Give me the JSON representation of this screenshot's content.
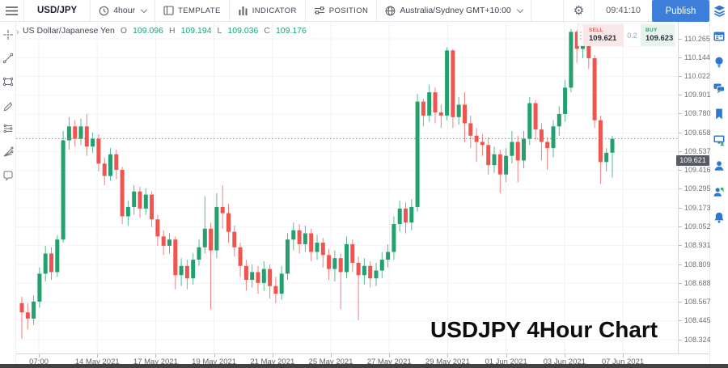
{
  "toolbar": {
    "symbol": "USD/JPY",
    "timeframe": "4hour",
    "template_label": "TEMPLATE",
    "indicator_label": "INDICATOR",
    "position_label": "POSITION",
    "timezone": "Australia/Sydney GMT+10:00",
    "clock_time": "09:41:10",
    "publish_label": "Publish"
  },
  "legend": {
    "instrument": "US Dollar/Japanese Yen",
    "o_label": "O",
    "o_value": "109.096",
    "h_label": "H",
    "h_value": "109.194",
    "l_label": "L",
    "l_value": "109.036",
    "c_label": "C",
    "c_value": "109.176"
  },
  "trade_widget": {
    "sell_label": "SELL",
    "sell_price": "109.621",
    "spread": "0.2",
    "buy_label": "BUY",
    "buy_price": "109.623"
  },
  "watermark": "USDJPY 4Hour Chart",
  "current_price": "109.621",
  "colors": {
    "candle_up": "#23a06d",
    "candle_down": "#f0544f",
    "publish_blue": "#3d7edb",
    "sidebar_icon_blue": "#2e77d0",
    "legend_value_green": "#1fa37c",
    "sell_bg": "#f9e8e8",
    "buy_bg": "#e8f3ed",
    "badge_bg": "#565b64"
  },
  "left_toolbar_tools": [
    "crosshair",
    "trend-line",
    "rectangle",
    "brush",
    "fib-retracement",
    "pitchfork",
    "comment"
  ],
  "right_sidebar_items": [
    "layers",
    "calendar",
    "idea",
    "chat",
    "bookmark",
    "screen-share",
    "profile",
    "community",
    "notifications"
  ],
  "chart_data": {
    "type": "candlestick",
    "symbol": "USDJPY",
    "timeframe": "4 hour",
    "title": "USDJPY 4Hour Chart",
    "current_price": 109.621,
    "y_range": [
      108.324,
      110.265
    ],
    "grid": true,
    "price_ticks": [
      "110.265",
      "110.144",
      "110.022",
      "109.901",
      "109.780",
      "109.658",
      "109.537",
      "109.416",
      "109.295",
      "109.173",
      "109.052",
      "108.931",
      "108.809",
      "108.688",
      "108.567",
      "108.445",
      "108.324"
    ],
    "time_ticks": [
      "07:00",
      "14 May 2021",
      "17 May 2021",
      "19 May 2021",
      "21 May 2021",
      "25 May 2021",
      "27 May 2021",
      "29 May 2021",
      "01 Jun 2021",
      "03 Jun 2021",
      "07 Jun 2021"
    ],
    "candles": [
      [
        108.56,
        108.6,
        108.33,
        108.5
      ],
      [
        108.5,
        108.56,
        108.39,
        108.46
      ],
      [
        108.46,
        108.61,
        108.42,
        108.57
      ],
      [
        108.57,
        108.79,
        108.53,
        108.75
      ],
      [
        108.75,
        108.93,
        108.7,
        108.88
      ],
      [
        108.88,
        108.92,
        108.71,
        108.76
      ],
      [
        108.76,
        109.0,
        108.73,
        108.97
      ],
      [
        108.97,
        109.67,
        108.95,
        109.61
      ],
      [
        109.61,
        109.76,
        109.55,
        109.7
      ],
      [
        109.7,
        109.74,
        109.57,
        109.62
      ],
      [
        109.62,
        109.75,
        109.58,
        109.7
      ],
      [
        109.7,
        109.78,
        109.51,
        109.57
      ],
      [
        109.57,
        109.66,
        109.53,
        109.62
      ],
      [
        109.62,
        109.65,
        109.41,
        109.46
      ],
      [
        109.46,
        109.5,
        109.32,
        109.38
      ],
      [
        109.38,
        109.56,
        109.35,
        109.52
      ],
      [
        109.52,
        109.55,
        109.36,
        109.42
      ],
      [
        109.42,
        109.44,
        109.07,
        109.12
      ],
      [
        109.12,
        109.22,
        109.06,
        109.18
      ],
      [
        109.18,
        109.32,
        109.13,
        109.28
      ],
      [
        109.28,
        109.31,
        109.11,
        109.17
      ],
      [
        109.17,
        109.3,
        109.13,
        109.26
      ],
      [
        109.26,
        109.28,
        109.05,
        109.1
      ],
      [
        109.1,
        109.13,
        108.93,
        108.99
      ],
      [
        108.99,
        109.03,
        108.87,
        108.93
      ],
      [
        108.93,
        109.01,
        108.88,
        108.97
      ],
      [
        108.97,
        108.99,
        108.65,
        108.74
      ],
      [
        108.74,
        108.85,
        108.67,
        108.8
      ],
      [
        108.8,
        108.84,
        108.65,
        108.72
      ],
      [
        108.72,
        108.88,
        108.68,
        108.84
      ],
      [
        108.84,
        108.97,
        108.8,
        108.92
      ],
      [
        108.92,
        109.25,
        108.88,
        109.04
      ],
      [
        109.04,
        109.08,
        108.52,
        108.9
      ],
      [
        108.9,
        109.27,
        108.85,
        109.18
      ],
      [
        109.18,
        109.32,
        109.04,
        109.14
      ],
      [
        109.14,
        109.2,
        108.95,
        109.02
      ],
      [
        109.02,
        109.06,
        108.86,
        108.92
      ],
      [
        108.92,
        108.95,
        108.73,
        108.8
      ],
      [
        108.8,
        108.84,
        108.64,
        108.71
      ],
      [
        108.71,
        108.81,
        108.66,
        108.76
      ],
      [
        108.76,
        108.8,
        108.62,
        108.69
      ],
      [
        108.69,
        108.83,
        108.64,
        108.78
      ],
      [
        108.78,
        108.81,
        108.59,
        108.67
      ],
      [
        108.67,
        108.73,
        108.56,
        108.62
      ],
      [
        108.62,
        108.8,
        108.58,
        108.75
      ],
      [
        108.75,
        109.01,
        108.71,
        108.97
      ],
      [
        108.97,
        109.08,
        108.9,
        109.03
      ],
      [
        109.03,
        109.07,
        108.88,
        108.94
      ],
      [
        108.94,
        109.06,
        108.89,
        109.01
      ],
      [
        109.01,
        109.04,
        108.83,
        108.89
      ],
      [
        108.89,
        109.0,
        108.84,
        108.95
      ],
      [
        108.95,
        108.98,
        108.79,
        108.87
      ],
      [
        108.87,
        108.91,
        108.71,
        108.78
      ],
      [
        108.78,
        108.9,
        108.7,
        108.85
      ],
      [
        108.85,
        108.88,
        108.52,
        108.76
      ],
      [
        108.76,
        108.99,
        108.72,
        108.94
      ],
      [
        108.94,
        108.97,
        108.76,
        108.82
      ],
      [
        108.82,
        108.86,
        108.45,
        108.74
      ],
      [
        108.74,
        108.85,
        108.68,
        108.8
      ],
      [
        108.8,
        108.83,
        108.66,
        108.72
      ],
      [
        108.72,
        108.82,
        108.67,
        108.77
      ],
      [
        108.77,
        108.89,
        108.72,
        108.84
      ],
      [
        108.84,
        108.94,
        108.79,
        108.89
      ],
      [
        108.89,
        109.12,
        108.84,
        109.07
      ],
      [
        109.07,
        109.22,
        109.02,
        109.17
      ],
      [
        109.17,
        109.21,
        109.01,
        109.08
      ],
      [
        109.08,
        109.23,
        109.03,
        109.18
      ],
      [
        109.18,
        109.91,
        109.15,
        109.86
      ],
      [
        109.86,
        109.88,
        109.7,
        109.77
      ],
      [
        109.77,
        109.97,
        109.73,
        109.92
      ],
      [
        109.92,
        109.95,
        109.72,
        109.79
      ],
      [
        109.79,
        109.84,
        109.69,
        109.77
      ],
      [
        109.77,
        110.21,
        109.74,
        110.19
      ],
      [
        110.19,
        110.2,
        109.69,
        109.76
      ],
      [
        109.76,
        109.89,
        109.71,
        109.84
      ],
      [
        109.84,
        109.92,
        109.6,
        109.72
      ],
      [
        109.72,
        109.77,
        109.56,
        109.64
      ],
      [
        109.64,
        109.69,
        109.47,
        109.6
      ],
      [
        109.6,
        109.65,
        109.51,
        109.58
      ],
      [
        109.58,
        109.63,
        109.39,
        109.45
      ],
      [
        109.45,
        109.57,
        109.4,
        109.52
      ],
      [
        109.52,
        109.55,
        109.27,
        109.39
      ],
      [
        109.39,
        109.56,
        109.34,
        109.51
      ],
      [
        109.51,
        109.67,
        109.46,
        109.6
      ],
      [
        109.6,
        109.64,
        109.34,
        109.48
      ],
      [
        109.48,
        109.67,
        109.43,
        109.62
      ],
      [
        109.62,
        109.89,
        109.58,
        109.85
      ],
      [
        109.85,
        109.87,
        109.61,
        109.68
      ],
      [
        109.68,
        109.72,
        109.48,
        109.6
      ],
      [
        109.6,
        109.63,
        109.42,
        109.56
      ],
      [
        109.56,
        109.74,
        109.5,
        109.7
      ],
      [
        109.7,
        109.83,
        109.64,
        109.78
      ],
      [
        109.78,
        110.0,
        109.73,
        109.95
      ],
      [
        109.95,
        110.33,
        109.92,
        110.31
      ],
      [
        110.31,
        110.32,
        110.11,
        110.2
      ],
      [
        110.2,
        110.3,
        110.14,
        110.26
      ],
      [
        110.26,
        110.28,
        110.07,
        110.14
      ],
      [
        110.14,
        110.16,
        109.69,
        109.74
      ],
      [
        109.74,
        109.77,
        109.33,
        109.47
      ],
      [
        109.47,
        109.56,
        109.41,
        109.53
      ],
      [
        109.53,
        109.64,
        109.37,
        109.62
      ]
    ]
  }
}
